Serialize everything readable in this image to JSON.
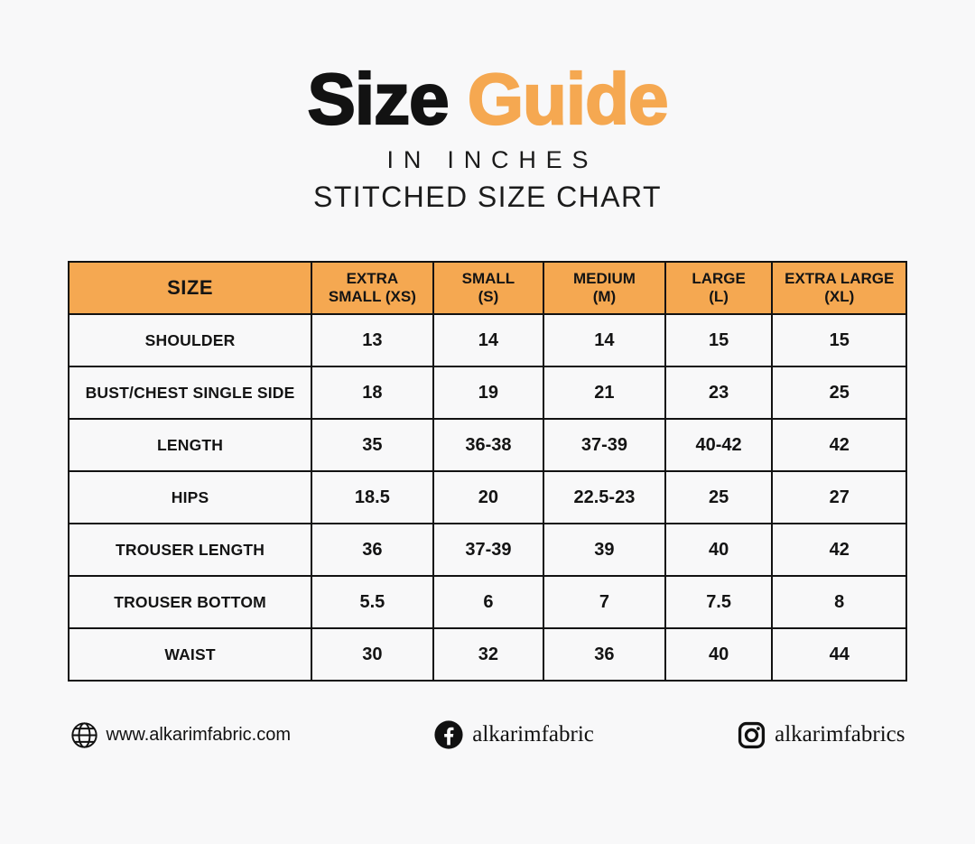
{
  "page": {
    "background": "#f8f8f9",
    "accent_orange": "#f5a851",
    "text_color": "#151515",
    "border_color": "#121212"
  },
  "header": {
    "title_part1": "Size",
    "title_part2": "Guide",
    "subtitle1": "IN INCHES",
    "subtitle2": "STITCHED SIZE CHART"
  },
  "chart_data": {
    "type": "table",
    "title": "Size Guide in Inches — Stitched Size Chart",
    "header_bg": "#f5a851",
    "columns": [
      "SIZE",
      "EXTRA SMALL (XS)",
      "SMALL (S)",
      "MEDIUM (M)",
      "LARGE (L)",
      "EXTRA LARGE (XL)"
    ],
    "header_lines": [
      [
        "SIZE"
      ],
      [
        "EXTRA",
        "SMALL (XS)"
      ],
      [
        "SMALL",
        "(S)"
      ],
      [
        "MEDIUM",
        "(M)"
      ],
      [
        "LARGE",
        "(L)"
      ],
      [
        "EXTRA LARGE",
        "(XL)"
      ]
    ],
    "rows": [
      {
        "label": "SHOULDER",
        "values": [
          "13",
          "14",
          "14",
          "15",
          "15"
        ]
      },
      {
        "label": "BUST/CHEST SINGLE SIDE",
        "values": [
          "18",
          "19",
          "21",
          "23",
          "25"
        ]
      },
      {
        "label": "LENGTH",
        "values": [
          "35",
          "36-38",
          "37-39",
          "40-42",
          "42"
        ]
      },
      {
        "label": "HIPS",
        "values": [
          "18.5",
          "20",
          "22.5-23",
          "25",
          "27"
        ]
      },
      {
        "label": "TROUSER LENGTH",
        "values": [
          "36",
          "37-39",
          "39",
          "40",
          "42"
        ]
      },
      {
        "label": "TROUSER BOTTOM",
        "values": [
          "5.5",
          "6",
          "7",
          "7.5",
          "8"
        ]
      },
      {
        "label": "WAIST",
        "values": [
          "30",
          "32",
          "36",
          "40",
          "44"
        ]
      }
    ]
  },
  "footer": {
    "website": "www.alkarimfabric.com",
    "facebook_handle": "alkarimfabric",
    "instagram_handle": "alkarimfabrics"
  }
}
